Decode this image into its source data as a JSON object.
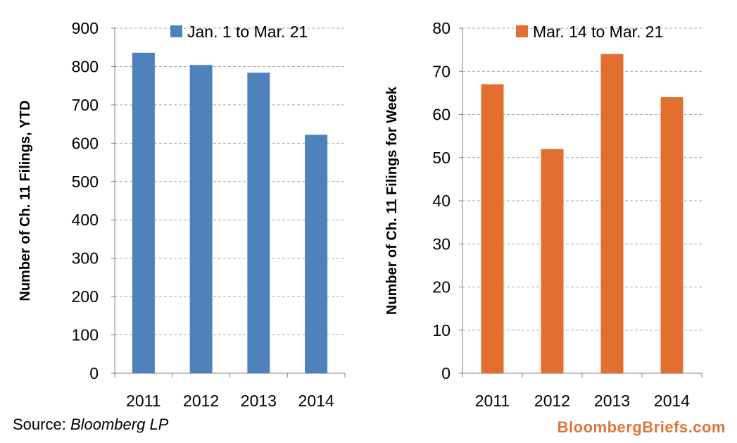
{
  "chart_data": [
    {
      "type": "bar",
      "categories": [
        "2011",
        "2012",
        "2013",
        "2014"
      ],
      "series": [
        {
          "name": "Jan. 1 to Mar. 21",
          "values": [
            836,
            804,
            784,
            622
          ]
        }
      ],
      "ylabel": "Number of Ch. 11 Filings, YTD",
      "ylim": [
        0,
        900
      ],
      "yticks": [
        0,
        100,
        200,
        300,
        400,
        500,
        600,
        700,
        800,
        900
      ],
      "grid": true,
      "legend": "top",
      "color": "#4f81bd"
    },
    {
      "type": "bar",
      "categories": [
        "2011",
        "2012",
        "2013",
        "2014"
      ],
      "series": [
        {
          "name": "Mar. 14  to Mar. 21",
          "values": [
            67,
            52,
            74,
            64
          ]
        }
      ],
      "ylabel": "Number of Ch. 11 Filings for Week",
      "ylim": [
        0,
        80
      ],
      "yticks": [
        0,
        10,
        20,
        30,
        40,
        50,
        60,
        70,
        80
      ],
      "grid": true,
      "legend": "top",
      "color": "#e26f2f"
    }
  ],
  "footer": {
    "source_prefix": "Source: ",
    "source_name": "Bloomberg LP",
    "brand": "BloombergBriefs.com"
  }
}
